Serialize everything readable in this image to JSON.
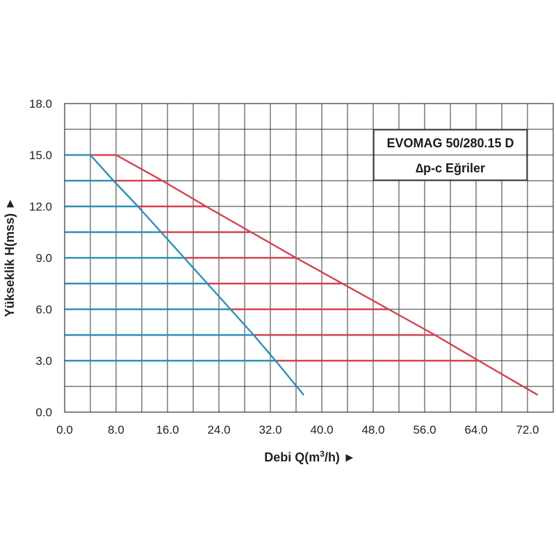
{
  "chart_data": {
    "type": "line",
    "title_box": {
      "line1": "EVOMAG 50/280.15 D",
      "line2": "∆p-c Eğriler"
    },
    "xlabel": {
      "text": "Debi Q(m",
      "sup": "3",
      "tail": "/h) ►"
    },
    "ylabel": "Yükseklik H(mss) ►",
    "xlim": [
      0,
      76
    ],
    "ylim": [
      0,
      18
    ],
    "x_ticks": [
      0,
      8,
      16,
      24,
      32,
      40,
      48,
      56,
      64,
      72
    ],
    "x_tick_labels": [
      "0.0",
      "8.0",
      "16.0",
      "24.0",
      "32.0",
      "40.0",
      "48.0",
      "56.0",
      "64.0",
      "72.0"
    ],
    "y_ticks": [
      0,
      3,
      6,
      9,
      12,
      15,
      18
    ],
    "y_tick_labels": [
      "0.0",
      "3.0",
      "6.0",
      "9.0",
      "12.0",
      "15.0",
      "18.0"
    ],
    "grid": true,
    "colors": {
      "blue": "#2a8fb8",
      "red": "#d2404e",
      "grid": "#333333"
    },
    "series": [
      {
        "color_key": "red",
        "x": [
          8.0,
          15.2,
          22.0,
          29.0,
          36.0,
          43.2,
          50.4,
          57.6,
          64.4,
          73.6
        ],
        "y": [
          15.0,
          13.5,
          12.0,
          10.5,
          9.0,
          7.5,
          6.0,
          4.5,
          3.0,
          1.0
        ]
      },
      {
        "color_key": "blue",
        "x": [
          4.0,
          7.6,
          11.4,
          15.0,
          18.6,
          22.2,
          25.8,
          29.4,
          32.8,
          37.2
        ],
        "y": [
          15.0,
          13.5,
          12.0,
          10.5,
          9.0,
          7.5,
          6.0,
          4.5,
          3.0,
          1.0
        ]
      }
    ],
    "constant_pressure_lines": [
      {
        "h": 15.0,
        "x_blue_end": 4.0,
        "x_red_end": 8.0
      },
      {
        "h": 13.5,
        "x_blue_end": 7.6,
        "x_red_end": 15.2
      },
      {
        "h": 12.0,
        "x_blue_end": 11.4,
        "x_red_end": 22.0
      },
      {
        "h": 10.5,
        "x_blue_end": 15.0,
        "x_red_end": 29.0
      },
      {
        "h": 9.0,
        "x_blue_end": 18.6,
        "x_red_end": 36.0
      },
      {
        "h": 7.5,
        "x_blue_end": 22.2,
        "x_red_end": 43.2
      },
      {
        "h": 6.0,
        "x_blue_end": 25.8,
        "x_red_end": 50.4
      },
      {
        "h": 4.5,
        "x_blue_end": 29.4,
        "x_red_end": 57.6
      },
      {
        "h": 3.0,
        "x_blue_end": 32.8,
        "x_red_end": 64.4
      }
    ]
  }
}
